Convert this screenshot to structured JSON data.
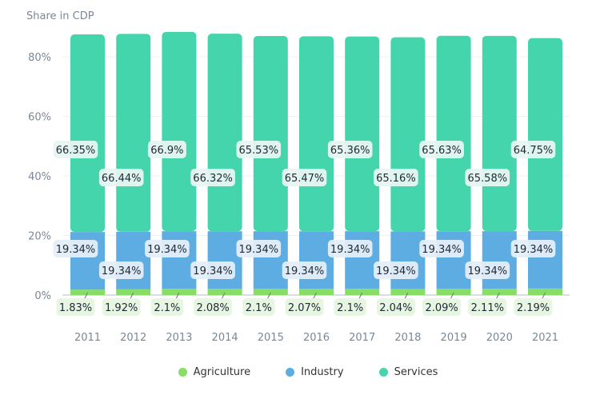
{
  "chart_data": {
    "type": "bar",
    "stacked": true,
    "ylabel": "Share in CDP",
    "ylim": [
      0,
      87
    ],
    "yticks": [
      "0%",
      "20%",
      "40%",
      "60%",
      "80%"
    ],
    "ytick_values": [
      0,
      20,
      40,
      60,
      80
    ],
    "grid": true,
    "legend_placement": "bottom",
    "categories": [
      "2011",
      "2012",
      "2013",
      "2014",
      "2015",
      "2016",
      "2017",
      "2018",
      "2019",
      "2020",
      "2021"
    ],
    "series": [
      {
        "name": "Agriculture",
        "color": "#88dd66",
        "values": [
          1.83,
          1.92,
          2.1,
          2.08,
          2.1,
          2.07,
          2.1,
          2.04,
          2.09,
          2.11,
          2.19
        ],
        "labels": [
          "1.83%",
          "1.92%",
          "2.1%",
          "2.08%",
          "2.1%",
          "2.07%",
          "2.1%",
          "2.04%",
          "2.09%",
          "2.11%",
          "2.19%"
        ]
      },
      {
        "name": "Industry",
        "color": "#5dade2",
        "values": [
          19.34,
          19.34,
          19.34,
          19.34,
          19.34,
          19.34,
          19.34,
          19.34,
          19.34,
          19.34,
          19.34
        ],
        "labels": [
          "19.34%",
          "19.34%",
          "19.34%",
          "19.34%",
          "19.34%",
          "19.34%",
          "19.34%",
          "19.34%",
          "19.34%",
          "19.34%",
          "19.34%"
        ]
      },
      {
        "name": "Services",
        "color": "#45d5ad",
        "values": [
          66.35,
          66.44,
          66.9,
          66.32,
          65.53,
          65.47,
          65.36,
          65.16,
          65.63,
          65.58,
          64.75
        ],
        "labels": [
          "66.35%",
          "66.44%",
          "66.9%",
          "66.32%",
          "65.53%",
          "65.47%",
          "65.36%",
          "65.16%",
          "65.63%",
          "65.58%",
          "64.75%"
        ]
      }
    ]
  }
}
